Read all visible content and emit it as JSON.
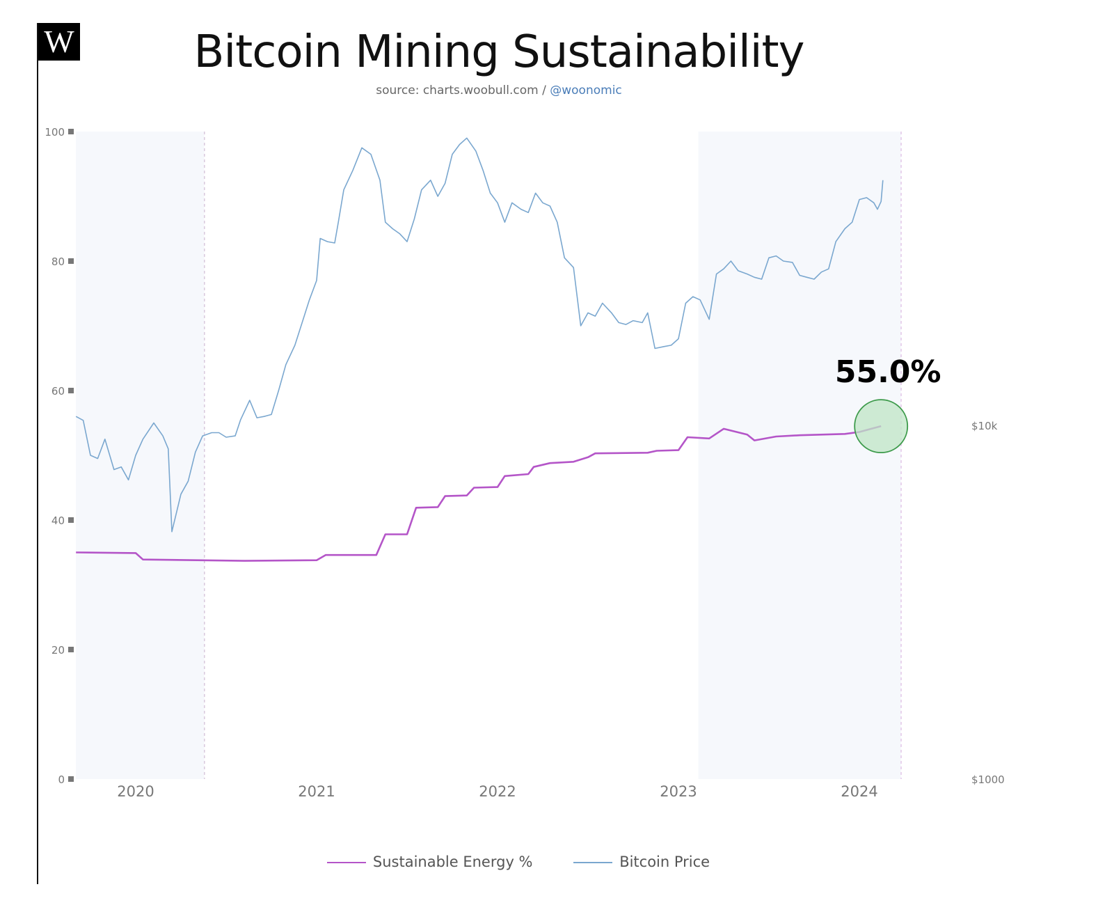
{
  "logo": {
    "letter": "W"
  },
  "header": {
    "title": "Bitcoin Mining Sustainability",
    "subtitle_source": "source: charts.woobull.com / ",
    "subtitle_handle": "@woonomic"
  },
  "colors": {
    "sustainable": "#b455c8",
    "price": "#7aa7cf",
    "highlight_fill": "#bfe5c5",
    "highlight_stroke": "#3c9a4a",
    "shade": "#f6f8fc"
  },
  "legend": {
    "items": [
      {
        "label": "Sustainable Energy %",
        "color": "#b455c8"
      },
      {
        "label": "Bitcoin Price",
        "color": "#7aa7cf"
      }
    ]
  },
  "annotation": {
    "label": "55.0%",
    "value": 55.0
  },
  "chart_data": {
    "type": "line",
    "x_ticks": [
      "2020",
      "2021",
      "2022",
      "2023",
      "2024"
    ],
    "y_left": {
      "ticks": [
        0,
        20,
        40,
        60,
        80,
        100
      ],
      "ylim": [
        0,
        100
      ]
    },
    "y_right": {
      "ticks": [
        "$10k",
        "$1000"
      ],
      "scale": "log"
    },
    "grid": false,
    "legend_position": "bottom-center",
    "series": [
      {
        "name": "Sustainable Energy %",
        "axis": "left",
        "points": [
          [
            2019.67,
            35.0
          ],
          [
            2020.0,
            34.9
          ],
          [
            2020.04,
            33.9
          ],
          [
            2020.6,
            33.7
          ],
          [
            2021.0,
            33.8
          ],
          [
            2021.05,
            34.6
          ],
          [
            2021.33,
            34.6
          ],
          [
            2021.38,
            37.8
          ],
          [
            2021.5,
            37.8
          ],
          [
            2021.55,
            41.9
          ],
          [
            2021.67,
            42.0
          ],
          [
            2021.71,
            43.7
          ],
          [
            2021.83,
            43.8
          ],
          [
            2021.87,
            45.0
          ],
          [
            2022.0,
            45.1
          ],
          [
            2022.04,
            46.8
          ],
          [
            2022.17,
            47.1
          ],
          [
            2022.2,
            48.2
          ],
          [
            2022.29,
            48.8
          ],
          [
            2022.42,
            49.0
          ],
          [
            2022.5,
            49.7
          ],
          [
            2022.54,
            50.3
          ],
          [
            2022.83,
            50.4
          ],
          [
            2022.88,
            50.7
          ],
          [
            2023.0,
            50.8
          ],
          [
            2023.05,
            52.8
          ],
          [
            2023.17,
            52.6
          ],
          [
            2023.25,
            54.1
          ],
          [
            2023.38,
            53.2
          ],
          [
            2023.42,
            52.3
          ],
          [
            2023.54,
            52.9
          ],
          [
            2023.67,
            53.1
          ],
          [
            2023.92,
            53.3
          ],
          [
            2024.0,
            53.6
          ],
          [
            2024.08,
            54.2
          ],
          [
            2024.12,
            54.5
          ]
        ]
      },
      {
        "name": "Bitcoin Price",
        "axis": "right",
        "points": [
          [
            2019.67,
            56.0
          ],
          [
            2019.71,
            55.4
          ],
          [
            2019.75,
            50.0
          ],
          [
            2019.79,
            49.5
          ],
          [
            2019.83,
            52.5
          ],
          [
            2019.88,
            47.8
          ],
          [
            2019.92,
            48.2
          ],
          [
            2019.96,
            46.2
          ],
          [
            2020.0,
            50.0
          ],
          [
            2020.04,
            52.5
          ],
          [
            2020.1,
            55.0
          ],
          [
            2020.15,
            53.0
          ],
          [
            2020.18,
            51.0
          ],
          [
            2020.2,
            38.2
          ],
          [
            2020.25,
            44.0
          ],
          [
            2020.29,
            46.0
          ],
          [
            2020.33,
            50.5
          ],
          [
            2020.37,
            53.0
          ],
          [
            2020.42,
            53.5
          ],
          [
            2020.46,
            53.5
          ],
          [
            2020.5,
            52.8
          ],
          [
            2020.55,
            53.0
          ],
          [
            2020.58,
            55.5
          ],
          [
            2020.63,
            58.5
          ],
          [
            2020.67,
            55.8
          ],
          [
            2020.71,
            56.0
          ],
          [
            2020.75,
            56.3
          ],
          [
            2020.79,
            60.0
          ],
          [
            2020.83,
            64.0
          ],
          [
            2020.88,
            67.0
          ],
          [
            2020.92,
            70.5
          ],
          [
            2020.96,
            74.0
          ],
          [
            2021.0,
            77.0
          ],
          [
            2021.02,
            83.5
          ],
          [
            2021.06,
            83.0
          ],
          [
            2021.1,
            82.8
          ],
          [
            2021.12,
            86.0
          ],
          [
            2021.15,
            91.0
          ],
          [
            2021.2,
            94.0
          ],
          [
            2021.25,
            97.5
          ],
          [
            2021.3,
            96.5
          ],
          [
            2021.35,
            92.5
          ],
          [
            2021.38,
            86.0
          ],
          [
            2021.42,
            85.0
          ],
          [
            2021.46,
            84.2
          ],
          [
            2021.5,
            83.0
          ],
          [
            2021.54,
            86.5
          ],
          [
            2021.58,
            91.0
          ],
          [
            2021.63,
            92.5
          ],
          [
            2021.67,
            90.0
          ],
          [
            2021.71,
            92.0
          ],
          [
            2021.75,
            96.5
          ],
          [
            2021.79,
            98.0
          ],
          [
            2021.83,
            99.0
          ],
          [
            2021.88,
            97.0
          ],
          [
            2021.92,
            94.0
          ],
          [
            2021.96,
            90.5
          ],
          [
            2022.0,
            89.0
          ],
          [
            2022.04,
            86.0
          ],
          [
            2022.08,
            89.0
          ],
          [
            2022.13,
            88.0
          ],
          [
            2022.17,
            87.5
          ],
          [
            2022.21,
            90.5
          ],
          [
            2022.25,
            89.0
          ],
          [
            2022.29,
            88.5
          ],
          [
            2022.33,
            86.0
          ],
          [
            2022.37,
            80.5
          ],
          [
            2022.42,
            79.0
          ],
          [
            2022.46,
            70.0
          ],
          [
            2022.5,
            72.0
          ],
          [
            2022.54,
            71.5
          ],
          [
            2022.58,
            73.5
          ],
          [
            2022.63,
            72.0
          ],
          [
            2022.67,
            70.5
          ],
          [
            2022.71,
            70.2
          ],
          [
            2022.75,
            70.8
          ],
          [
            2022.8,
            70.5
          ],
          [
            2022.83,
            72.0
          ],
          [
            2022.87,
            66.5
          ],
          [
            2022.92,
            66.8
          ],
          [
            2022.96,
            67.0
          ],
          [
            2023.0,
            68.0
          ],
          [
            2023.04,
            73.5
          ],
          [
            2023.08,
            74.5
          ],
          [
            2023.12,
            74.0
          ],
          [
            2023.17,
            71.0
          ],
          [
            2023.21,
            78.0
          ],
          [
            2023.25,
            78.8
          ],
          [
            2023.29,
            80.0
          ],
          [
            2023.33,
            78.5
          ],
          [
            2023.38,
            78.0
          ],
          [
            2023.42,
            77.5
          ],
          [
            2023.46,
            77.2
          ],
          [
            2023.5,
            80.5
          ],
          [
            2023.54,
            80.8
          ],
          [
            2023.58,
            80.0
          ],
          [
            2023.63,
            79.8
          ],
          [
            2023.67,
            77.8
          ],
          [
            2023.71,
            77.5
          ],
          [
            2023.75,
            77.2
          ],
          [
            2023.79,
            78.3
          ],
          [
            2023.83,
            78.8
          ],
          [
            2023.87,
            83.0
          ],
          [
            2023.92,
            85.0
          ],
          [
            2023.96,
            86.0
          ],
          [
            2024.0,
            89.5
          ],
          [
            2024.04,
            89.8
          ],
          [
            2024.08,
            89.0
          ],
          [
            2024.1,
            88.0
          ],
          [
            2024.12,
            89.2
          ],
          [
            2024.13,
            92.5
          ]
        ]
      }
    ]
  }
}
